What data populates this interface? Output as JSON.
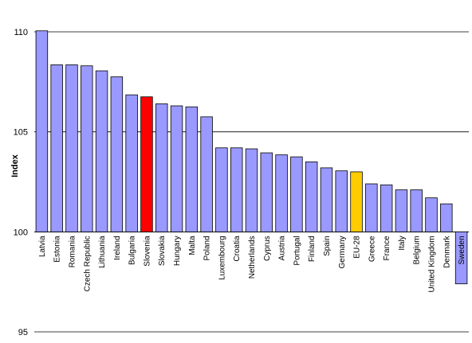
{
  "chart_data": {
    "type": "bar",
    "title": "",
    "xlabel": "",
    "ylabel": "Index",
    "ylim": [
      95,
      110
    ],
    "yticks": [
      95,
      100,
      105,
      110
    ],
    "baseline": 100,
    "grid": true,
    "categories": [
      "Latvia",
      "Estonia",
      "Romania",
      "Czech Republic",
      "Lithuania",
      "Ireland",
      "Bulgaria",
      "Slovenia",
      "Slovakia",
      "Hungary",
      "Malta",
      "Poland",
      "Luxembourg",
      "Croatia",
      "Netherlands",
      "Cyprus",
      "Austria",
      "Portugal",
      "Finland",
      "Spain",
      "Germany",
      "EU-28",
      "Greece",
      "France",
      "Italy",
      "Belgium",
      "United Kingdom",
      "Denmark",
      "Sweden"
    ],
    "values": [
      110.05,
      108.35,
      108.35,
      108.3,
      108.05,
      107.75,
      106.85,
      106.75,
      106.4,
      106.3,
      106.25,
      105.75,
      104.2,
      104.2,
      104.15,
      103.95,
      103.85,
      103.75,
      103.5,
      103.2,
      103.05,
      103.0,
      102.4,
      102.35,
      102.1,
      102.1,
      101.7,
      101.4,
      97.4
    ],
    "colors": {
      "default": "#9999ff",
      "highlight_slovenia": "#ff0000",
      "highlight_eu28": "#ffcc00",
      "grid": "#000000",
      "bar_stroke": "#000000"
    },
    "highlight": {
      "Slovenia": "#ff0000",
      "EU-28": "#ffcc00"
    }
  }
}
